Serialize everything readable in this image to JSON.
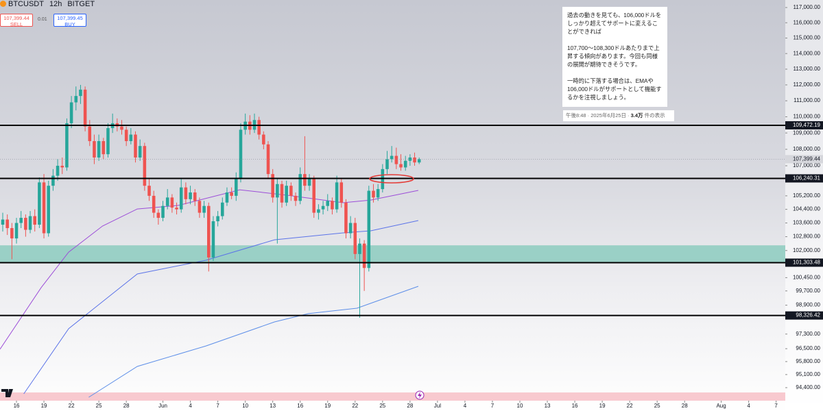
{
  "chart_data": {
    "type": "candlestick",
    "symbol": "BTCUSDT",
    "interval": "12h",
    "exchange": "BITGET",
    "sell_price": "107,399.44",
    "sell_label": "SELL",
    "spread": "0.01",
    "buy_price": "107,399.45",
    "buy_label": "BUY",
    "log_scale": true,
    "grid": false,
    "up_color": "#26a69a",
    "down_color": "#ef5350",
    "xlim": [
      -1.8,
      84
    ],
    "ylim": [
      93890,
      117499
    ],
    "xticks": [
      {
        "value": 0,
        "label": "16"
      },
      {
        "value": 3,
        "label": "19"
      },
      {
        "value": 6,
        "label": "22"
      },
      {
        "value": 9,
        "label": "25"
      },
      {
        "value": 12,
        "label": "28"
      },
      {
        "value": 16,
        "label": "Jun"
      },
      {
        "value": 19,
        "label": "4"
      },
      {
        "value": 22,
        "label": "7"
      },
      {
        "value": 25,
        "label": "10"
      },
      {
        "value": 28,
        "label": "13"
      },
      {
        "value": 31,
        "label": "16"
      },
      {
        "value": 34,
        "label": "19"
      },
      {
        "value": 37,
        "label": "22"
      },
      {
        "value": 40,
        "label": "25"
      },
      {
        "value": 43,
        "label": "28"
      },
      {
        "value": 46,
        "label": "Jul"
      },
      {
        "value": 49,
        "label": "4"
      },
      {
        "value": 52,
        "label": "7"
      },
      {
        "value": 55,
        "label": "10"
      },
      {
        "value": 58,
        "label": "13"
      },
      {
        "value": 61,
        "label": "16"
      },
      {
        "value": 64,
        "label": "19"
      },
      {
        "value": 67,
        "label": "22"
      },
      {
        "value": 70,
        "label": "25"
      },
      {
        "value": 73,
        "label": "28"
      },
      {
        "value": 77,
        "label": "Aug"
      },
      {
        "value": 80,
        "label": "4"
      },
      {
        "value": 83,
        "label": "7"
      }
    ],
    "yticks": [
      {
        "value": 117000,
        "label": "117,000.00"
      },
      {
        "value": 116000,
        "label": "116,000.00"
      },
      {
        "value": 115000,
        "label": "115,000.00"
      },
      {
        "value": 114000,
        "label": "114,000.00"
      },
      {
        "value": 113000,
        "label": "113,000.00"
      },
      {
        "value": 112000,
        "label": "112,000.00"
      },
      {
        "value": 111000,
        "label": "111,000.00"
      },
      {
        "value": 110000,
        "label": "110,000.00"
      },
      {
        "value": 109000,
        "label": "109,000.00"
      },
      {
        "value": 108000,
        "label": "108,000.00"
      },
      {
        "value": 107000,
        "label": "107,000.00"
      },
      {
        "value": 105200,
        "label": "105,200.00"
      },
      {
        "value": 104400,
        "label": "104,400.00"
      },
      {
        "value": 103600,
        "label": "103,600.00"
      },
      {
        "value": 102800,
        "label": "102,800.00"
      },
      {
        "value": 102000,
        "label": "102,000.00"
      },
      {
        "value": 100450,
        "label": "100,450.00"
      },
      {
        "value": 99700,
        "label": "99,700.00"
      },
      {
        "value": 98900,
        "label": "98,900.00"
      },
      {
        "value": 97300,
        "label": "97,300.00"
      },
      {
        "value": 96500,
        "label": "96,500.00"
      },
      {
        "value": 95800,
        "label": "95,800.00"
      },
      {
        "value": 95100,
        "label": "95,100.00"
      },
      {
        "value": 94400,
        "label": "94,400.00"
      }
    ],
    "levels": [
      {
        "value": 109472.19,
        "label": "109,472.19"
      },
      {
        "value": 106240.31,
        "label": "106,240.31"
      },
      {
        "value": 101303.48,
        "label": "101,303.48"
      },
      {
        "value": 98326.42,
        "label": "98,326.42"
      }
    ],
    "last": {
      "value": 107399.44,
      "label": "107,399.44"
    },
    "zone": [
      101303.48,
      102300
    ],
    "zone_color": "#9ad0c6",
    "x": [
      -1.5,
      -1,
      -0.5,
      0,
      0.5,
      1,
      1.5,
      2,
      2.5,
      3,
      3.5,
      4,
      4.5,
      5,
      5.5,
      6,
      6.5,
      7,
      7.5,
      8,
      8.5,
      9,
      9.5,
      10,
      10.5,
      11,
      11.5,
      12,
      12.5,
      13,
      13.5,
      14,
      14.5,
      15,
      15.5,
      16,
      16.5,
      17,
      17.5,
      18,
      18.5,
      19,
      19.5,
      20,
      20.5,
      21,
      21.5,
      22,
      22.5,
      23,
      23.5,
      24,
      24.5,
      25,
      25.5,
      26,
      26.5,
      27,
      27.5,
      28,
      28.5,
      29,
      29.5,
      30,
      30.5,
      31,
      31.5,
      32,
      32.5,
      33,
      33.5,
      34,
      34.5,
      35,
      35.5,
      36,
      36.5,
      37,
      37.5,
      38,
      38.5,
      39,
      39.5,
      40,
      40.5,
      41,
      41.5,
      42,
      42.5,
      43,
      43.5,
      44
    ],
    "ohlc": [
      [
        103500,
        104200,
        103100,
        103800
      ],
      [
        103800,
        104100,
        102900,
        103300
      ],
      [
        103300,
        103600,
        101500,
        102700
      ],
      [
        102700,
        103900,
        102400,
        103600
      ],
      [
        103600,
        104300,
        103300,
        103900
      ],
      [
        103900,
        104100,
        102800,
        103200
      ],
      [
        103200,
        104300,
        103000,
        104000
      ],
      [
        104000,
        104400,
        103100,
        103500
      ],
      [
        103500,
        106300,
        103300,
        106000
      ],
      [
        106000,
        106500,
        102700,
        103000
      ],
      [
        103000,
        106100,
        102800,
        105800
      ],
      [
        105800,
        106800,
        105500,
        106400
      ],
      [
        106400,
        107400,
        106100,
        107000
      ],
      [
        107000,
        107500,
        106500,
        106900
      ],
      [
        106900,
        109900,
        106700,
        109600
      ],
      [
        109600,
        111300,
        109300,
        110900
      ],
      [
        110900,
        111900,
        110400,
        111300
      ],
      [
        111300,
        112000,
        110800,
        111700
      ],
      [
        111700,
        111900,
        109100,
        109400
      ],
      [
        109400,
        109800,
        108200,
        108500
      ],
      [
        108500,
        108900,
        107100,
        107500
      ],
      [
        107500,
        108900,
        107300,
        108500
      ],
      [
        108500,
        108700,
        107400,
        107700
      ],
      [
        107700,
        109600,
        107500,
        109300
      ],
      [
        109300,
        110200,
        109000,
        109600
      ],
      [
        109600,
        109900,
        109100,
        109400
      ],
      [
        109400,
        109800,
        108900,
        109200
      ],
      [
        109200,
        109400,
        108200,
        108500
      ],
      [
        108500,
        109300,
        108300,
        108900
      ],
      [
        108900,
        109100,
        107200,
        107500
      ],
      [
        107500,
        108600,
        107300,
        108200
      ],
      [
        108200,
        108400,
        105500,
        105800
      ],
      [
        105800,
        106200,
        104900,
        105200
      ],
      [
        105200,
        105500,
        103900,
        104200
      ],
      [
        104200,
        104400,
        103500,
        103900
      ],
      [
        103900,
        104900,
        103700,
        104600
      ],
      [
        104600,
        105600,
        104400,
        105100
      ],
      [
        105100,
        105300,
        104200,
        104500
      ],
      [
        104500,
        104800,
        104100,
        104400
      ],
      [
        104400,
        106200,
        104200,
        105700
      ],
      [
        105700,
        106000,
        104700,
        105000
      ],
      [
        105000,
        105800,
        104700,
        105400
      ],
      [
        105400,
        105600,
        104600,
        104900
      ],
      [
        104900,
        105100,
        103900,
        104200
      ],
      [
        104200,
        104900,
        103900,
        104600
      ],
      [
        104600,
        104800,
        100800,
        101600
      ],
      [
        101600,
        104000,
        101400,
        103700
      ],
      [
        103700,
        104300,
        103400,
        104000
      ],
      [
        104000,
        105100,
        103800,
        104800
      ],
      [
        104800,
        105700,
        104600,
        105400
      ],
      [
        105400,
        105700,
        105000,
        105200
      ],
      [
        105200,
        106600,
        104900,
        106200
      ],
      [
        106200,
        109600,
        106000,
        109200
      ],
      [
        109200,
        110200,
        108900,
        109700
      ],
      [
        109700,
        110100,
        108900,
        109200
      ],
      [
        109200,
        110200,
        109000,
        109800
      ],
      [
        109800,
        110000,
        108600,
        108900
      ],
      [
        108900,
        109100,
        108000,
        108300
      ],
      [
        108300,
        108500,
        106200,
        106500
      ],
      [
        106500,
        106800,
        104800,
        105100
      ],
      [
        105100,
        106200,
        102400,
        105900
      ],
      [
        105900,
        106100,
        104500,
        104800
      ],
      [
        104800,
        106100,
        104600,
        105800
      ],
      [
        105800,
        106000,
        104900,
        105200
      ],
      [
        105200,
        105400,
        104600,
        104900
      ],
      [
        104900,
        106900,
        104700,
        106500
      ],
      [
        106500,
        108800,
        105500,
        105800
      ],
      [
        105800,
        106500,
        105500,
        106200
      ],
      [
        106200,
        106400,
        103900,
        104200
      ],
      [
        104200,
        104700,
        103800,
        104400
      ],
      [
        104400,
        104900,
        104100,
        104600
      ],
      [
        104600,
        105300,
        104300,
        104900
      ],
      [
        104900,
        105100,
        104100,
        104400
      ],
      [
        104400,
        106400,
        104200,
        106000
      ],
      [
        106000,
        106200,
        104500,
        104800
      ],
      [
        104800,
        105000,
        102700,
        103000
      ],
      [
        103000,
        104000,
        102700,
        103600
      ],
      [
        103600,
        103900,
        101500,
        101800
      ],
      [
        101800,
        102700,
        98200,
        102400
      ],
      [
        102400,
        102600,
        99700,
        101000
      ],
      [
        101000,
        105800,
        100800,
        105500
      ],
      [
        105500,
        105900,
        104800,
        105100
      ],
      [
        105100,
        105900,
        104900,
        105600
      ],
      [
        105600,
        107100,
        105400,
        106800
      ],
      [
        106800,
        107900,
        106500,
        107400
      ],
      [
        107400,
        108200,
        107200,
        107600
      ],
      [
        107600,
        108100,
        106800,
        107100
      ],
      [
        107100,
        107700,
        106700,
        106900
      ],
      [
        106900,
        107600,
        106700,
        107300
      ],
      [
        107300,
        107700,
        107000,
        107500
      ],
      [
        107500,
        107800,
        107000,
        107200
      ],
      [
        107200,
        107500,
        107100,
        107399.44
      ]
    ],
    "lines": [
      {
        "color": "#9c4dd8",
        "x": [
          -1.8,
          2.7,
          5.7,
          9.4,
          13.2,
          17.7,
          24.4,
          29.7,
          35.7,
          38.7,
          43.9
        ],
        "values": [
          96470,
          99890,
          101910,
          103420,
          104420,
          104630,
          105560,
          105230,
          104790,
          104950,
          105520
        ]
      },
      {
        "color": "#5b73e8",
        "x": [
          0.8,
          5.7,
          13.2,
          20.7,
          28.2,
          35.7,
          38.7,
          43.9
        ],
        "values": [
          94070,
          97600,
          100660,
          101440,
          102620,
          103020,
          103140,
          103740
        ]
      },
      {
        "color": "#5b8de8",
        "x": [
          7.9,
          13.2,
          20.7,
          28.2,
          31.9,
          37.2,
          43.9
        ],
        "values": [
          93890,
          95540,
          96650,
          97970,
          98430,
          98730,
          99960
        ]
      }
    ],
    "annotation": [
      "過去の動きを見ても、106,000ドルをしっかり超えてサポートに変えることができれば",
      "107,700〜108,300ドルあたりまで上昇する傾向があります。今回も同様の展開が期待できそうです。",
      "一時的に下落する場合は、EMAや106,000ドルがサポートとして機能するかを注視しましょう。"
    ],
    "annotation_footer": [
      "午後8:48 · 2025年6月25日 · ",
      "3.4万",
      " 件の表示"
    ]
  }
}
